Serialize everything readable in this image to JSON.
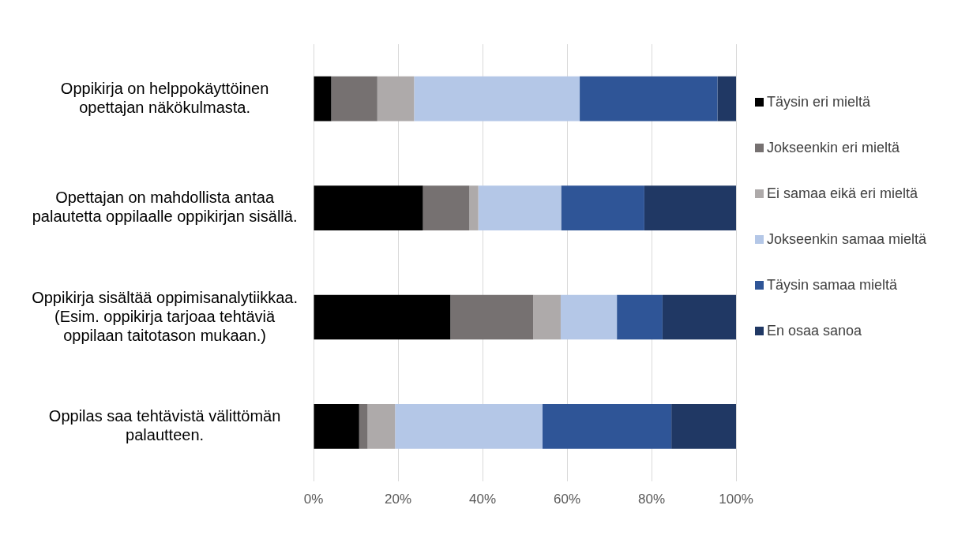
{
  "chart_data": {
    "type": "bar",
    "orientation": "horizontal",
    "stacked": true,
    "categories": [
      "Oppikirja on helppokäyttöinen opettajan näkökulmasta.",
      "Opettajan on mahdollista antaa palautetta oppilaalle oppikirjan sisällä.",
      "Oppikirja sisältää oppimisanalytiikkaa. (Esim. oppikirja tarjoaa tehtäviä oppilaan taitotason mukaan.)",
      "Oppilas saa tehtävistä välittömän palautteen."
    ],
    "series": [
      {
        "name": "Täysin eri mieltä",
        "color": "#000000",
        "values": [
          4.2,
          25.9,
          32.4,
          10.8
        ]
      },
      {
        "name": "Jokseenkin eri mieltä",
        "color": "#767171",
        "values": [
          10.9,
          11.0,
          19.6,
          2.0
        ]
      },
      {
        "name": "Ei samaa eikä eri mieltä",
        "color": "#aeaaaa",
        "values": [
          8.7,
          2.1,
          6.5,
          6.5
        ]
      },
      {
        "name": "Jokseenkin samaa mieltä",
        "color": "#b4c7e7",
        "values": [
          39.2,
          19.6,
          13.3,
          34.9
        ]
      },
      {
        "name": "Täysin samaa mieltä",
        "color": "#2f5597",
        "values": [
          32.6,
          19.7,
          10.8,
          30.5
        ]
      },
      {
        "name": "En osaa sanoa",
        "color": "#203864",
        "values": [
          4.4,
          21.7,
          17.4,
          15.3
        ]
      }
    ],
    "xlim": [
      0,
      100
    ],
    "xticks": [
      {
        "value": 0,
        "label": "0%"
      },
      {
        "value": 20,
        "label": "20%"
      },
      {
        "value": 40,
        "label": "40%"
      },
      {
        "value": 60,
        "label": "60%"
      },
      {
        "value": 80,
        "label": "80%"
      },
      {
        "value": 100,
        "label": "100%"
      }
    ],
    "grid": "x",
    "legend": "right"
  }
}
